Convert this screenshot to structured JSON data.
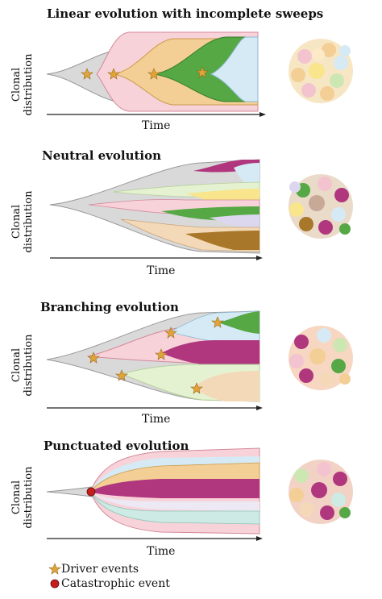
{
  "panels": [
    {
      "title": "Linear evolution with incomplete sweeps",
      "ylabel_line1": "Clonal",
      "ylabel_line2": "distribution",
      "xlabel": "Time"
    },
    {
      "title": "Neutral evolution",
      "ylabel_line1": "Clonal",
      "ylabel_line2": "distribution",
      "xlabel": "Time"
    },
    {
      "title": "Branching evolution",
      "ylabel_line1": "Clonal",
      "ylabel_line2": "distribution",
      "xlabel": "Time"
    },
    {
      "title": "Punctuated evolution",
      "ylabel_line1": "Clonal",
      "ylabel_line2": "distribution",
      "xlabel": "Time"
    }
  ],
  "legend": {
    "driver": "Driver events",
    "catastrophic": "Catastrophic event"
  },
  "colors": {
    "grey": "#d9d9d9",
    "pink": "#f7d3d9",
    "orange": "#f3cf95",
    "green": "#55a844",
    "lightblue": "#d6eaf5",
    "lightgreen": "#e4f2d2",
    "magenta": "#b0377e",
    "brown": "#a8772a",
    "yellow": "#f8e58c",
    "lavender": "#dcd7ee",
    "peach": "#f3d9b7",
    "teal": "#cdeae4",
    "star": "#e0a43a",
    "red": "#c41f1f"
  }
}
